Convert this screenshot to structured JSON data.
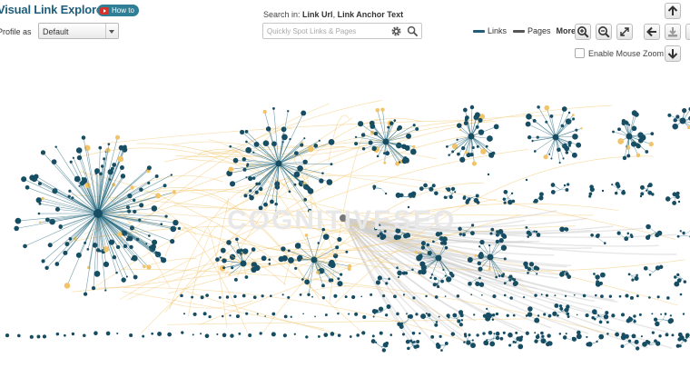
{
  "app": {
    "title": "Visual Link Explorer",
    "how_to_label": "How to"
  },
  "profile": {
    "label": "Profile as",
    "selected": "Default"
  },
  "search": {
    "in_prefix": "Search in:",
    "field_1": "Link Url",
    "separator": ",",
    "field_2": "Link Anchor Text",
    "placeholder": "Quickly Spot Links & Pages"
  },
  "legend": {
    "links_label": "Links",
    "pages_label": "Pages",
    "more_label": "More",
    "links_color": "#1f5d7a",
    "pages_color": "#555555"
  },
  "controls": {
    "enable_mouse_zoom_label": "Enable Mouse Zoom",
    "enable_mouse_zoom_checked": false,
    "buttons": [
      "zoom-in-icon",
      "zoom-out-icon",
      "fullscreen-icon",
      "arrow-left-icon",
      "download-icon",
      "arrow-up-icon",
      "arrow-down-icon"
    ]
  },
  "graph": {
    "node_color": "#174d63",
    "link_color_primary": "#2a6c82",
    "link_color_secondary": "#f2c46a",
    "hub_color": "#777777",
    "watermark": "COGNITIVESEO"
  }
}
